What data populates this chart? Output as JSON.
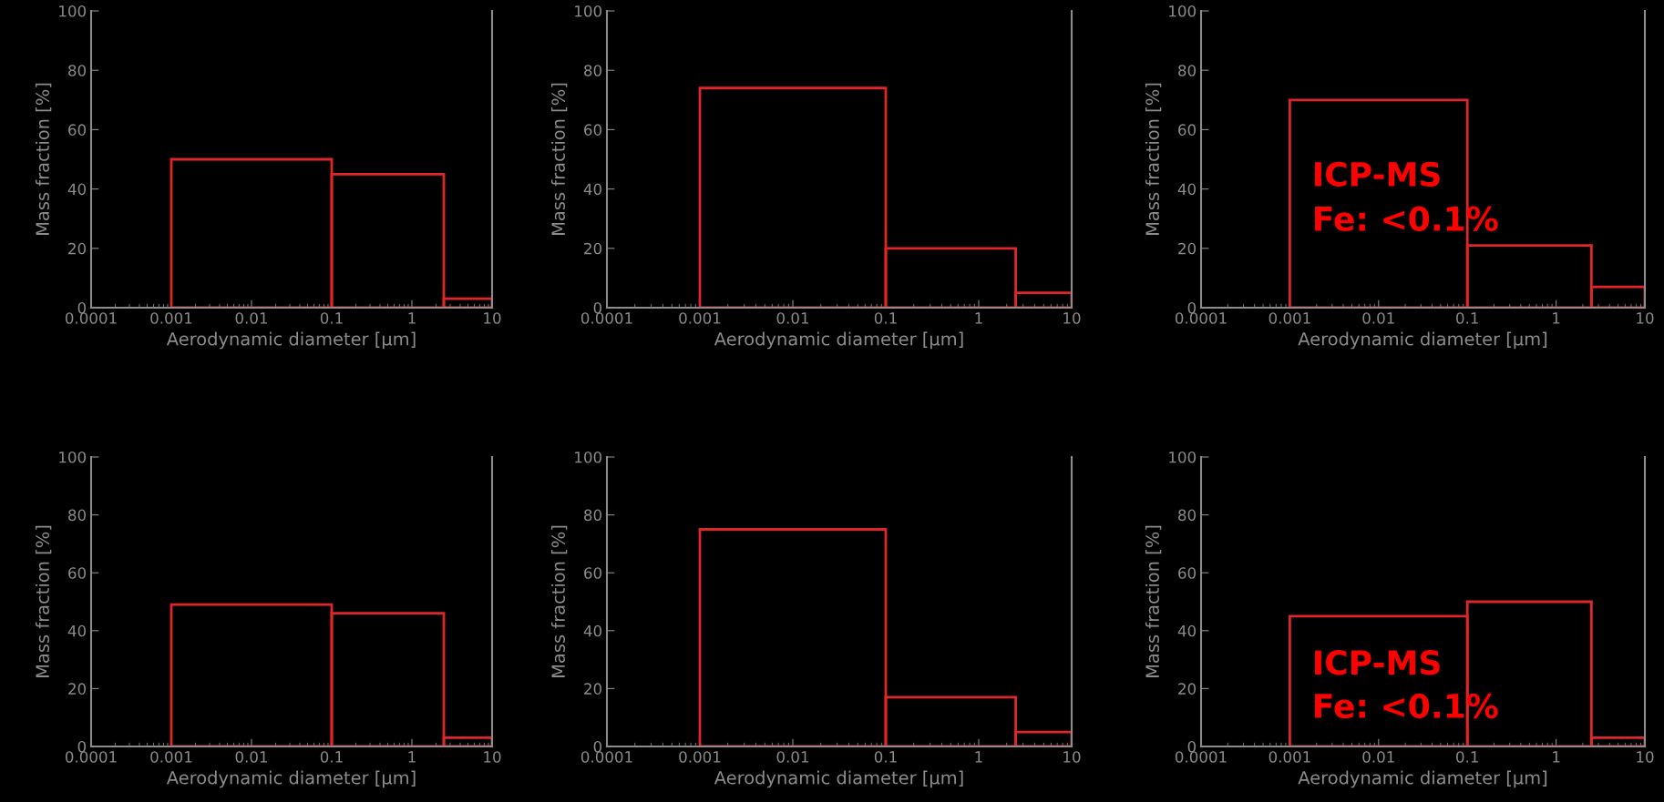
{
  "chart_data": [
    {
      "type": "histogram",
      "bins": [
        0.001,
        0.1,
        2.5,
        10
      ],
      "values": [
        50,
        45,
        3
      ],
      "color": "#e0262b",
      "log": "x",
      "xlim": [
        0.0001,
        10
      ],
      "xticks": [
        0.0001,
        0.001,
        0.01,
        0.1,
        1,
        10
      ],
      "ylim": [
        0,
        100
      ],
      "yticks": [
        0,
        20,
        40,
        60,
        80,
        100
      ],
      "xlabel": "Aerodynamic diameter [µm]",
      "ylabel": "Mass fraction [%]"
    },
    {
      "type": "histogram",
      "bins": [
        0.001,
        0.1,
        2.5,
        10
      ],
      "values": [
        74,
        20,
        5
      ],
      "color": "#e0262b",
      "log": "x",
      "xlim": [
        0.0001,
        10
      ],
      "xticks": [
        0.0001,
        0.001,
        0.01,
        0.1,
        1,
        10
      ],
      "ylim": [
        0,
        100
      ],
      "yticks": [
        0,
        20,
        40,
        60,
        80,
        100
      ],
      "xlabel": "Aerodynamic diameter [µm]",
      "ylabel": "Mass fraction [%]"
    },
    {
      "type": "histogram",
      "bins": [
        0.001,
        0.1,
        2.5,
        10
      ],
      "values": [
        70,
        21,
        7
      ],
      "color": "#e0262b",
      "log": "x",
      "xlim": [
        0.0001,
        10
      ],
      "xticks": [
        0.0001,
        0.001,
        0.01,
        0.1,
        1,
        10
      ],
      "ylim": [
        0,
        100
      ],
      "yticks": [
        0,
        20,
        40,
        60,
        80,
        100
      ],
      "xlabel": "Aerodynamic diameter [µm]",
      "ylabel": "Mass fraction [%]",
      "annotations": [
        "ICP-MS",
        "Fe: <0.1%"
      ]
    },
    {
      "type": "histogram",
      "bins": [
        0.001,
        0.1,
        2.5,
        10
      ],
      "values": [
        49,
        46,
        3
      ],
      "color": "#e0262b",
      "log": "x",
      "xlim": [
        0.0001,
        10
      ],
      "xticks": [
        0.0001,
        0.001,
        0.01,
        0.1,
        1,
        10
      ],
      "ylim": [
        0,
        100
      ],
      "yticks": [
        0,
        20,
        40,
        60,
        80,
        100
      ],
      "xlabel": "Aerodynamic diameter [µm]",
      "ylabel": "Mass fraction [%]"
    },
    {
      "type": "histogram",
      "bins": [
        0.001,
        0.1,
        2.5,
        10
      ],
      "values": [
        75,
        17,
        5
      ],
      "color": "#e0262b",
      "log": "x",
      "xlim": [
        0.0001,
        10
      ],
      "xticks": [
        0.0001,
        0.001,
        0.01,
        0.1,
        1,
        10
      ],
      "ylim": [
        0,
        100
      ],
      "yticks": [
        0,
        20,
        40,
        60,
        80,
        100
      ],
      "xlabel": "Aerodynamic diameter [µm]",
      "ylabel": "Mass fraction [%]"
    },
    {
      "type": "histogram",
      "bins": [
        0.001,
        0.1,
        2.5,
        10
      ],
      "values": [
        45,
        50,
        3
      ],
      "color": "#e0262b",
      "log": "x",
      "xlim": [
        0.0001,
        10
      ],
      "xticks": [
        0.0001,
        0.001,
        0.01,
        0.1,
        1,
        10
      ],
      "ylim": [
        0,
        100
      ],
      "yticks": [
        0,
        20,
        40,
        60,
        80,
        100
      ],
      "xlabel": "Aerodynamic diameter [µm]",
      "ylabel": "Mass fraction [%]",
      "annotations": [
        "ICP-MS",
        "Fe: <0.1%"
      ]
    }
  ]
}
